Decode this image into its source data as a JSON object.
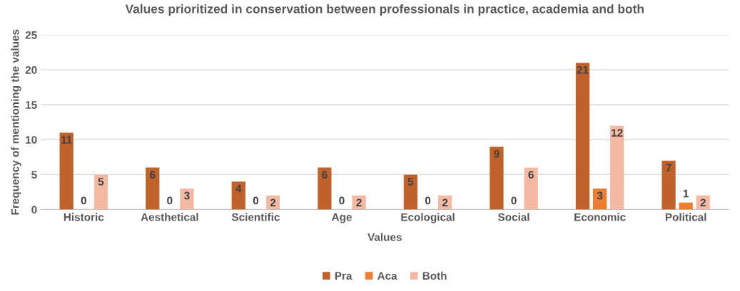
{
  "chart_data": {
    "type": "bar",
    "title": "Values prioritized in conservation between professionals in practice, academia and both",
    "xlabel": "Values",
    "ylabel": "Frequency of mentioning the values",
    "categories": [
      "Historic",
      "Aesthetical",
      "Scientific",
      "Age",
      "Ecological",
      "Social",
      "Economic",
      "Political"
    ],
    "series": [
      {
        "name": "Pra",
        "color": "#c0622b",
        "values": [
          11,
          6,
          4,
          6,
          5,
          9,
          21,
          7
        ]
      },
      {
        "name": "Aca",
        "color": "#ed7d31",
        "values": [
          0,
          0,
          0,
          0,
          0,
          0,
          3,
          1
        ]
      },
      {
        "name": "Both",
        "color": "#f4b9a2",
        "values": [
          5,
          3,
          2,
          2,
          2,
          6,
          12,
          2
        ]
      }
    ],
    "ylim": [
      0,
      25
    ],
    "yticks": [
      0,
      5,
      10,
      15,
      20,
      25
    ],
    "grid": "y",
    "legend": "bottom",
    "data_labels": true
  }
}
